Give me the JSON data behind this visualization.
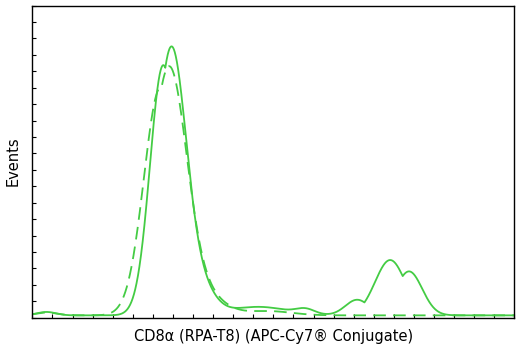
{
  "line_color": "#44cc44",
  "background_color": "#ffffff",
  "ylabel": "Events",
  "xlabel": "CD8α (RPA-T8) (APC-Cy7® Conjugate)",
  "xlabel_fontsize": 10.5,
  "ylabel_fontsize": 10.5,
  "figsize": [
    5.2,
    3.5
  ],
  "dpi": 100,
  "xlim": [
    0,
    1024
  ],
  "ylim": [
    0,
    1100
  ],
  "baseline": 8
}
